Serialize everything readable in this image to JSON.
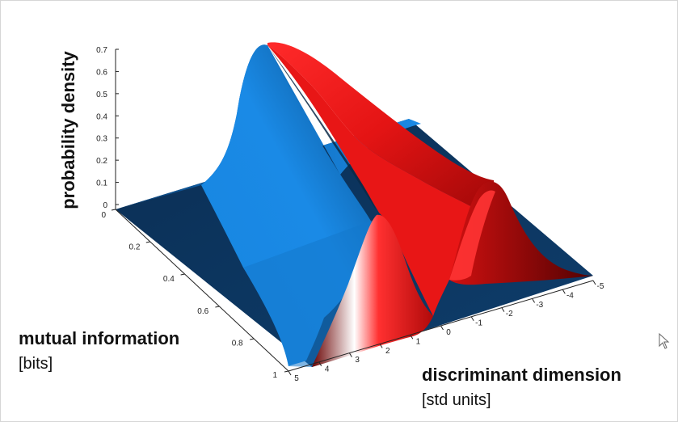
{
  "chart_data": {
    "type": "surface",
    "zlabel": "probability density",
    "ylabel": {
      "title": "mutual information",
      "unit": "[bits]"
    },
    "xlabel": {
      "title": "discriminant dimension",
      "unit": "[std units]"
    },
    "zticks": [
      "0",
      "0.1",
      "0.2",
      "0.3",
      "0.4",
      "0.5",
      "0.6",
      "0.7"
    ],
    "yticks": [
      "0",
      "0.2",
      "0.4",
      "0.6",
      "0.8",
      "1"
    ],
    "xticks": [
      "5",
      "4",
      "3",
      "2",
      "1",
      "0",
      "-1",
      "-2",
      "-3",
      "-4",
      "-5"
    ],
    "zlim": [
      0,
      0.7
    ],
    "ylim": [
      0,
      1
    ],
    "xlim": [
      -5,
      5
    ],
    "series": [
      {
        "color": "#1385e3",
        "peak_density_at_mi0": 0.7,
        "peak_x_at_mi0": 0,
        "peak_x_at_mi1": 1.7
      },
      {
        "color": "#e01010",
        "peak_density_at_mi0": 0.7,
        "peak_x_at_mi0": 0,
        "peak_x_at_mi1": -1.7
      }
    ],
    "floor_color": "#0d3a66"
  }
}
